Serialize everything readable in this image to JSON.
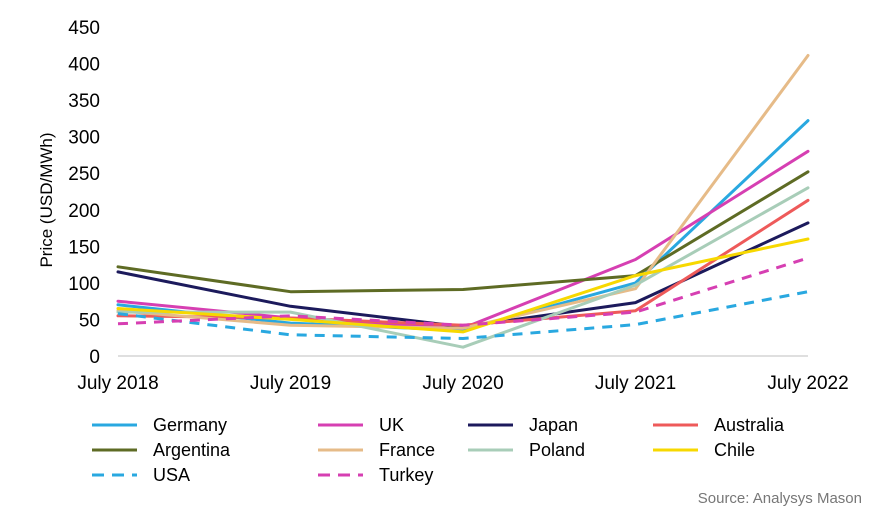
{
  "chart_data": {
    "type": "line",
    "title": "",
    "xlabel": "",
    "ylabel": "Price (USD/MWh)",
    "categories": [
      "July 2018",
      "July 2019",
      "July 2020",
      "July 2021",
      "July 2022"
    ],
    "ylim": [
      0,
      450
    ],
    "yticks": [
      "0",
      "50",
      "100",
      "150",
      "200",
      "250",
      "300",
      "350",
      "400",
      "450"
    ],
    "grid": false,
    "legend_position": "bottom",
    "source": "Source: Analysys Mason",
    "series": [
      {
        "name": "Germany",
        "color": "#29a8e0",
        "dashed": false,
        "values": [
          70,
          45,
          35,
          100,
          322
        ]
      },
      {
        "name": "UK",
        "color": "#d63fb2",
        "dashed": false,
        "values": [
          75,
          52,
          38,
          132,
          280
        ]
      },
      {
        "name": "Japan",
        "color": "#1c1a5c",
        "dashed": false,
        "values": [
          115,
          68,
          40,
          73,
          182
        ]
      },
      {
        "name": "Australia",
        "color": "#ee5a5a",
        "dashed": false,
        "values": [
          55,
          52,
          42,
          62,
          213
        ]
      },
      {
        "name": "Argentina",
        "color": "#5e6b24",
        "dashed": false,
        "values": [
          122,
          88,
          91,
          110,
          252
        ]
      },
      {
        "name": "France",
        "color": "#e6bb88",
        "dashed": false,
        "values": [
          62,
          42,
          38,
          92,
          411
        ]
      },
      {
        "name": "Poland",
        "color": "#a8cdb8",
        "dashed": false,
        "values": [
          60,
          60,
          12,
          97,
          230
        ]
      },
      {
        "name": "Chile",
        "color": "#f7d800",
        "dashed": false,
        "values": [
          65,
          50,
          33,
          110,
          160
        ]
      },
      {
        "name": "USA",
        "color": "#29a8e0",
        "dashed": true,
        "values": [
          58,
          29,
          24,
          43,
          88
        ]
      },
      {
        "name": "Turkey",
        "color": "#d63fb2",
        "dashed": true,
        "values": [
          44,
          55,
          42,
          60,
          134
        ]
      }
    ]
  }
}
